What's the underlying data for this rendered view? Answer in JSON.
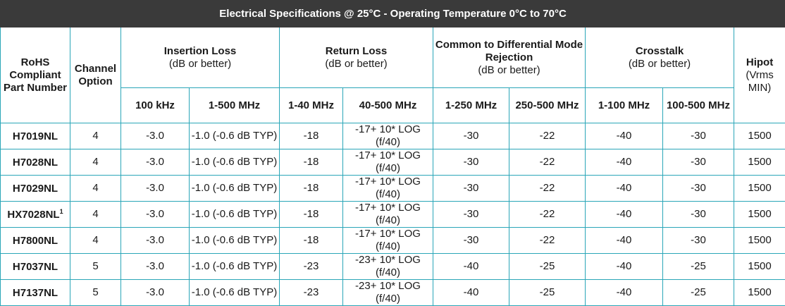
{
  "title": "Electrical Specifications @ 25°C - Operating Temperature 0°C to 70°C",
  "headers": {
    "part": "RoHS Compliant Part Number",
    "channel": "Channel Option",
    "insertion_loss": {
      "label": "Insertion Loss",
      "sub": "(dB or better)"
    },
    "return_loss": {
      "label": "Return Loss",
      "sub": "(dB or better)"
    },
    "cmdr": {
      "label": "Common to Differential Mode Rejection",
      "sub": "(dB or better)"
    },
    "crosstalk": {
      "label": "Crosstalk",
      "sub": "(dB or better)"
    },
    "hipot": {
      "label": "Hipot",
      "sub": "(Vrms MIN)"
    }
  },
  "subheaders": [
    "100 kHz",
    "1-500 MHz",
    "1-40 MHz",
    "40-500 MHz",
    "1-250 MHz",
    "250-500 MHz",
    "1-100 MHz",
    "100-500 MHz"
  ],
  "rows": [
    {
      "part": "H7019NL",
      "sup": "",
      "channel": "4",
      "il_100k": "-3.0",
      "il_1_500": "-1.0 (-0.6 dB TYP)",
      "rl_1_40": "-18",
      "rl_40_500": "-17+ 10* LOG (f/40)",
      "cm_1_250": "-30",
      "cm_250_500": "-22",
      "ct_1_100": "-40",
      "ct_100_500": "-30",
      "hipot": "1500"
    },
    {
      "part": "H7028NL",
      "sup": "",
      "channel": "4",
      "il_100k": "-3.0",
      "il_1_500": "-1.0 (-0.6 dB TYP)",
      "rl_1_40": "-18",
      "rl_40_500": "-17+ 10* LOG (f/40)",
      "cm_1_250": "-30",
      "cm_250_500": "-22",
      "ct_1_100": "-40",
      "ct_100_500": "-30",
      "hipot": "1500"
    },
    {
      "part": "H7029NL",
      "sup": "",
      "channel": "4",
      "il_100k": "-3.0",
      "il_1_500": "-1.0 (-0.6 dB TYP)",
      "rl_1_40": "-18",
      "rl_40_500": "-17+ 10* LOG (f/40)",
      "cm_1_250": "-30",
      "cm_250_500": "-22",
      "ct_1_100": "-40",
      "ct_100_500": "-30",
      "hipot": "1500"
    },
    {
      "part": "HX7028NL",
      "sup": "1",
      "channel": "4",
      "il_100k": "-3.0",
      "il_1_500": "-1.0 (-0.6 dB TYP)",
      "rl_1_40": "-18",
      "rl_40_500": "-17+ 10* LOG (f/40)",
      "cm_1_250": "-30",
      "cm_250_500": "-22",
      "ct_1_100": "-40",
      "ct_100_500": "-30",
      "hipot": "1500"
    },
    {
      "part": "H7800NL",
      "sup": "",
      "channel": "4",
      "il_100k": "-3.0",
      "il_1_500": "-1.0 (-0.6 dB TYP)",
      "rl_1_40": "-18",
      "rl_40_500": "-17+ 10* LOG (f/40)",
      "cm_1_250": "-30",
      "cm_250_500": "-22",
      "ct_1_100": "-40",
      "ct_100_500": "-30",
      "hipot": "1500"
    },
    {
      "part": "H7037NL",
      "sup": "",
      "channel": "5",
      "il_100k": "-3.0",
      "il_1_500": "-1.0 (-0.6 dB TYP)",
      "rl_1_40": "-23",
      "rl_40_500": "-23+ 10* LOG (f/40)",
      "cm_1_250": "-40",
      "cm_250_500": "-25",
      "ct_1_100": "-40",
      "ct_100_500": "-25",
      "hipot": "1500"
    },
    {
      "part": "H7137NL",
      "sup": "",
      "channel": "5",
      "il_100k": "-3.0",
      "il_1_500": "-1.0 (-0.6 dB TYP)",
      "rl_1_40": "-23",
      "rl_40_500": "-23+ 10* LOG (f/40)",
      "cm_1_250": "-40",
      "cm_250_500": "-25",
      "ct_1_100": "-40",
      "ct_100_500": "-25",
      "hipot": "1500"
    }
  ]
}
